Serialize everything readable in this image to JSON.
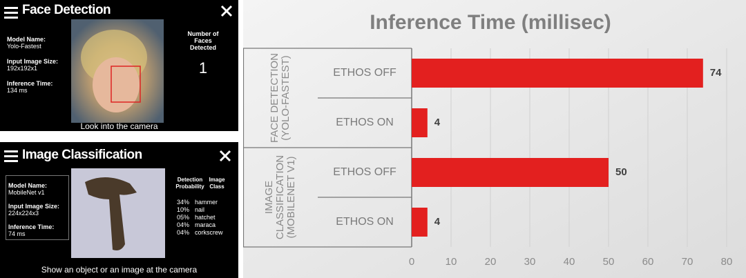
{
  "face_panel": {
    "title": "Face Detection",
    "model_name_label": "Model Name:",
    "model_name": "Yolo-Fastest",
    "input_size_label": "Input Image Size:",
    "input_size": "192x192x1",
    "inference_time_label": "Inference Time:",
    "inference_time": "134 ms",
    "faces_label": "Number of Faces Detected",
    "faces_count": 1,
    "caption": "Look into the camera"
  },
  "classification_panel": {
    "title": "Image Classification",
    "model_name_label": "Model Name:",
    "model_name": "MobileNet v1",
    "input_size_label": "Input Image Size:",
    "input_size": "224x224x3",
    "inference_time_label": "Inference Time:",
    "inference_time": "74 ms",
    "probability_header": "Detection Probability",
    "class_header": "Image Class",
    "predictions": [
      {
        "probability": "34%",
        "label": "hammer"
      },
      {
        "probability": "10%",
        "label": "nail"
      },
      {
        "probability": "05%",
        "label": "hatchet"
      },
      {
        "probability": "04%",
        "label": "maraca"
      },
      {
        "probability": "04%",
        "label": "corkscrew"
      }
    ],
    "caption": "Show an object or an image at the camera"
  },
  "chart_data": {
    "type": "bar",
    "orientation": "horizontal",
    "title": "Inference Time (millisec)",
    "groups": [
      "FACE DETECTION (YOLO-FASTEST)",
      "IMAGE CLASSIFICATION (MOBILENET V1)"
    ],
    "categories": [
      "ETHOS OFF",
      "ETHOS ON",
      "ETHOS OFF",
      "ETHOS ON"
    ],
    "values": [
      74,
      4,
      50,
      4
    ],
    "color": "#e3201f",
    "xlim": [
      0,
      80
    ],
    "xticks": [
      0,
      10,
      20,
      30,
      40,
      50,
      60,
      70,
      80
    ],
    "grid": true
  }
}
